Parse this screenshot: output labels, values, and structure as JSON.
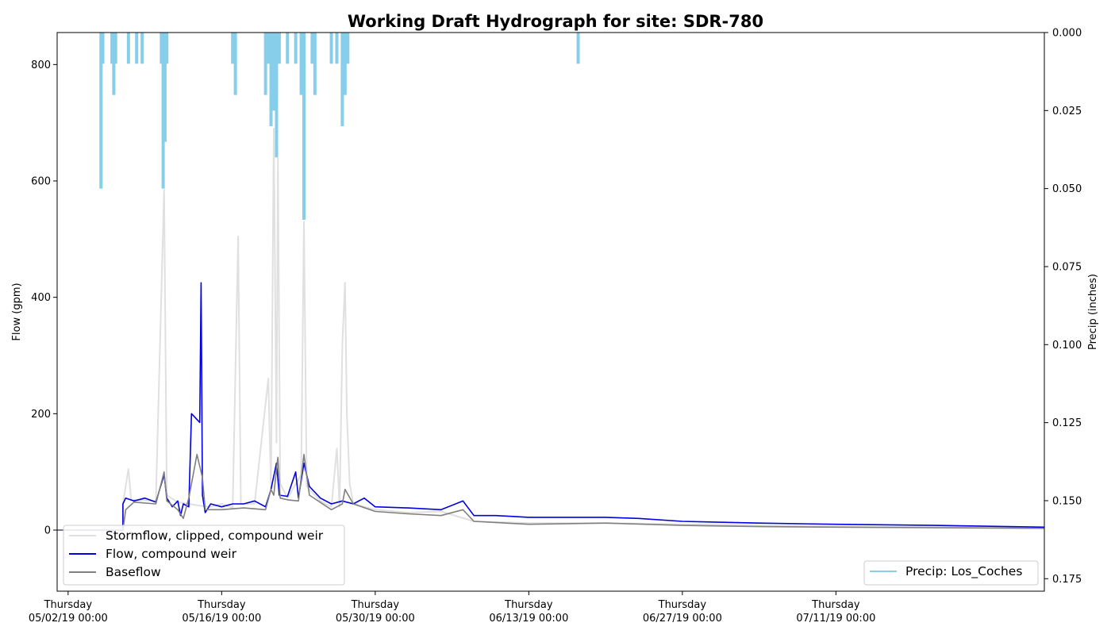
{
  "chart_data": {
    "type": "line",
    "title": "Working Draft Hydrograph for site: SDR-780",
    "ylabel": "Flow (gpm)",
    "y2label": "Precip (inches)",
    "ylim": [
      -105,
      855
    ],
    "y2lim": [
      0.179,
      0.0
    ],
    "xlim": [
      "2019-05-01",
      "2019-07-30"
    ],
    "yticks": [
      0,
      200,
      400,
      600,
      800
    ],
    "y2ticks": [
      0.0,
      0.025,
      0.05,
      0.075,
      0.1,
      0.125,
      0.15,
      0.175
    ],
    "y2tick_labels": [
      "0.000",
      "0.025",
      "0.050",
      "0.075",
      "0.100",
      "0.125",
      "0.150",
      "0.175"
    ],
    "xticks": [
      {
        "x": "2019-05-02",
        "line1": "Thursday",
        "line2": "05/02/19 00:00"
      },
      {
        "x": "2019-05-16",
        "line1": "Thursday",
        "line2": "05/16/19 00:00"
      },
      {
        "x": "2019-05-30",
        "line1": "Thursday",
        "line2": "05/30/19 00:00"
      },
      {
        "x": "2019-06-13",
        "line1": "Thursday",
        "line2": "06/13/19 00:00"
      },
      {
        "x": "2019-06-27",
        "line1": "Thursday",
        "line2": "06/27/19 00:00"
      },
      {
        "x": "2019-07-11",
        "line1": "Thursday",
        "line2": "07/11/19 00:00"
      }
    ],
    "grid": false,
    "legend_left": {
      "placement": "lower-left",
      "entries": [
        {
          "label": "Stormflow, clipped, compound weir",
          "color": "#e0e0e0"
        },
        {
          "label": "Flow, compound weir",
          "color": "#0000e0"
        },
        {
          "label": "Baseflow",
          "color": "#808080"
        }
      ]
    },
    "legend_right": {
      "placement": "lower-right",
      "entries": [
        {
          "label": "Precip: Los_Coches",
          "color": "#87ceeb"
        }
      ]
    },
    "series": [
      {
        "name": "Stormflow, clipped, compound weir",
        "color": "#e0e0e0",
        "axis": "left",
        "points": [
          [
            "2019-05-01",
            0
          ],
          [
            "2019-05-07",
            0
          ],
          [
            "2019-05-07",
            45
          ],
          [
            "2019-05-07 12:00",
            105
          ],
          [
            "2019-05-07 18:00",
            52
          ],
          [
            "2019-05-10",
            50
          ],
          [
            "2019-05-10 18:00",
            585
          ],
          [
            "2019-05-11",
            60
          ],
          [
            "2019-05-12",
            48
          ],
          [
            "2019-05-14",
            42
          ],
          [
            "2019-05-15",
            40
          ],
          [
            "2019-05-16",
            45
          ],
          [
            "2019-05-17",
            38
          ],
          [
            "2019-05-17 12:00",
            505
          ],
          [
            "2019-05-17 18:00",
            45
          ],
          [
            "2019-05-19",
            45
          ],
          [
            "2019-05-20 06:00",
            260
          ],
          [
            "2019-05-20 12:00",
            70
          ],
          [
            "2019-05-20 18:00",
            690
          ],
          [
            "2019-05-21",
            150
          ],
          [
            "2019-05-21 03:00",
            640
          ],
          [
            "2019-05-21 08:00",
            80
          ],
          [
            "2019-05-22",
            55
          ],
          [
            "2019-05-23 06:00",
            95
          ],
          [
            "2019-05-23 12:00",
            530
          ],
          [
            "2019-05-23 18:00",
            75
          ],
          [
            "2019-05-25",
            50
          ],
          [
            "2019-05-26",
            40
          ],
          [
            "2019-05-26 12:00",
            140
          ],
          [
            "2019-05-26 18:00",
            40
          ],
          [
            "2019-05-27",
            320
          ],
          [
            "2019-05-27 06:00",
            425
          ],
          [
            "2019-05-27 10:00",
            200
          ],
          [
            "2019-05-27 16:00",
            80
          ],
          [
            "2019-05-28",
            45
          ],
          [
            "2019-05-30",
            35
          ],
          [
            "2019-06-02",
            30
          ],
          [
            "2019-06-05",
            32
          ],
          [
            "2019-06-08",
            15
          ],
          [
            "2019-06-13",
            12
          ],
          [
            "2019-06-20",
            12
          ],
          [
            "2019-06-27",
            10
          ],
          [
            "2019-07-04",
            8
          ],
          [
            "2019-07-11",
            6
          ],
          [
            "2019-07-30",
            4
          ]
        ]
      },
      {
        "name": "Flow, compound weir",
        "color": "#0000e0",
        "axis": "left",
        "points": [
          [
            "2019-05-01",
            0
          ],
          [
            "2019-05-07",
            0
          ],
          [
            "2019-05-07",
            45
          ],
          [
            "2019-05-07 06:00",
            55
          ],
          [
            "2019-05-08",
            50
          ],
          [
            "2019-05-09",
            55
          ],
          [
            "2019-05-10",
            48
          ],
          [
            "2019-05-10 18:00",
            95
          ],
          [
            "2019-05-11",
            55
          ],
          [
            "2019-05-11 12:00",
            40
          ],
          [
            "2019-05-12",
            50
          ],
          [
            "2019-05-12 06:00",
            25
          ],
          [
            "2019-05-12 12:00",
            45
          ],
          [
            "2019-05-13",
            40
          ],
          [
            "2019-05-13 06:00",
            200
          ],
          [
            "2019-05-14",
            185
          ],
          [
            "2019-05-14 03:00",
            425
          ],
          [
            "2019-05-14 06:00",
            60
          ],
          [
            "2019-05-14 12:00",
            30
          ],
          [
            "2019-05-15",
            45
          ],
          [
            "2019-05-16",
            40
          ],
          [
            "2019-05-17",
            45
          ],
          [
            "2019-05-18",
            45
          ],
          [
            "2019-05-19",
            50
          ],
          [
            "2019-05-20",
            40
          ],
          [
            "2019-05-20 12:00",
            70
          ],
          [
            "2019-05-21",
            115
          ],
          [
            "2019-05-21 06:00",
            60
          ],
          [
            "2019-05-22",
            58
          ],
          [
            "2019-05-22 18:00",
            100
          ],
          [
            "2019-05-23",
            55
          ],
          [
            "2019-05-23 12:00",
            115
          ],
          [
            "2019-05-24",
            75
          ],
          [
            "2019-05-25",
            55
          ],
          [
            "2019-05-26",
            45
          ],
          [
            "2019-05-27",
            50
          ],
          [
            "2019-05-28",
            45
          ],
          [
            "2019-05-29",
            55
          ],
          [
            "2019-05-30",
            40
          ],
          [
            "2019-06-02",
            38
          ],
          [
            "2019-06-05",
            35
          ],
          [
            "2019-06-07",
            50
          ],
          [
            "2019-06-08",
            25
          ],
          [
            "2019-06-10",
            25
          ],
          [
            "2019-06-13",
            22
          ],
          [
            "2019-06-20",
            22
          ],
          [
            "2019-06-23",
            20
          ],
          [
            "2019-06-27",
            15
          ],
          [
            "2019-07-04",
            12
          ],
          [
            "2019-07-11",
            10
          ],
          [
            "2019-07-20",
            8
          ],
          [
            "2019-07-30",
            5
          ]
        ]
      },
      {
        "name": "Baseflow",
        "color": "#808080",
        "axis": "left",
        "points": [
          [
            "2019-05-01",
            0
          ],
          [
            "2019-05-07",
            0
          ],
          [
            "2019-05-07 06:00",
            35
          ],
          [
            "2019-05-08",
            48
          ],
          [
            "2019-05-10",
            45
          ],
          [
            "2019-05-10 18:00",
            100
          ],
          [
            "2019-05-11",
            50
          ],
          [
            "2019-05-12",
            35
          ],
          [
            "2019-05-12 12:00",
            20
          ],
          [
            "2019-05-13",
            55
          ],
          [
            "2019-05-13 18:00",
            130
          ],
          [
            "2019-05-14 06:00",
            90
          ],
          [
            "2019-05-14 12:00",
            35
          ],
          [
            "2019-05-16",
            35
          ],
          [
            "2019-05-18",
            38
          ],
          [
            "2019-05-20",
            35
          ],
          [
            "2019-05-20 12:00",
            70
          ],
          [
            "2019-05-20 18:00",
            60
          ],
          [
            "2019-05-21",
            105
          ],
          [
            "2019-05-21 03:00",
            125
          ],
          [
            "2019-05-21 08:00",
            55
          ],
          [
            "2019-05-22",
            52
          ],
          [
            "2019-05-23",
            50
          ],
          [
            "2019-05-23 12:00",
            130
          ],
          [
            "2019-05-24",
            60
          ],
          [
            "2019-05-26",
            35
          ],
          [
            "2019-05-27",
            45
          ],
          [
            "2019-05-27 06:00",
            70
          ],
          [
            "2019-05-28",
            45
          ],
          [
            "2019-05-30",
            32
          ],
          [
            "2019-06-02",
            28
          ],
          [
            "2019-06-05",
            25
          ],
          [
            "2019-06-07",
            35
          ],
          [
            "2019-06-08",
            15
          ],
          [
            "2019-06-13",
            10
          ],
          [
            "2019-06-20",
            12
          ],
          [
            "2019-06-27",
            8
          ],
          [
            "2019-07-04",
            6
          ],
          [
            "2019-07-11",
            5
          ],
          [
            "2019-07-30",
            3
          ]
        ]
      },
      {
        "name": "Precip: Los_Coches",
        "color": "#87ceeb",
        "axis": "right",
        "kind": "bars",
        "points": [
          [
            "2019-05-05",
            0.05
          ],
          [
            "2019-05-05 04:00",
            0.01
          ],
          [
            "2019-05-06",
            0.01
          ],
          [
            "2019-05-06 04:00",
            0.02
          ],
          [
            "2019-05-06 08:00",
            0.01
          ],
          [
            "2019-05-07 12:00",
            0.01
          ],
          [
            "2019-05-08 06:00",
            0.01
          ],
          [
            "2019-05-08 18:00",
            0.01
          ],
          [
            "2019-05-10 12:00",
            0.01
          ],
          [
            "2019-05-10 16:00",
            0.05
          ],
          [
            "2019-05-10 20:00",
            0.035
          ],
          [
            "2019-05-11",
            0.01
          ],
          [
            "2019-05-17",
            0.01
          ],
          [
            "2019-05-17 06:00",
            0.02
          ],
          [
            "2019-05-20",
            0.02
          ],
          [
            "2019-05-20 06:00",
            0.01
          ],
          [
            "2019-05-20 12:00",
            0.03
          ],
          [
            "2019-05-20 18:00",
            0.025
          ],
          [
            "2019-05-21",
            0.04
          ],
          [
            "2019-05-21 06:00",
            0.01
          ],
          [
            "2019-05-22",
            0.01
          ],
          [
            "2019-05-22 18:00",
            0.01
          ],
          [
            "2019-05-23 06:00",
            0.02
          ],
          [
            "2019-05-23 12:00",
            0.06
          ],
          [
            "2019-05-24 06:00",
            0.01
          ],
          [
            "2019-05-24 12:00",
            0.02
          ],
          [
            "2019-05-26",
            0.01
          ],
          [
            "2019-05-26 12:00",
            0.01
          ],
          [
            "2019-05-27",
            0.03
          ],
          [
            "2019-05-27 06:00",
            0.02
          ],
          [
            "2019-05-27 12:00",
            0.01
          ],
          [
            "2019-06-17 12:00",
            0.01
          ]
        ]
      }
    ]
  }
}
